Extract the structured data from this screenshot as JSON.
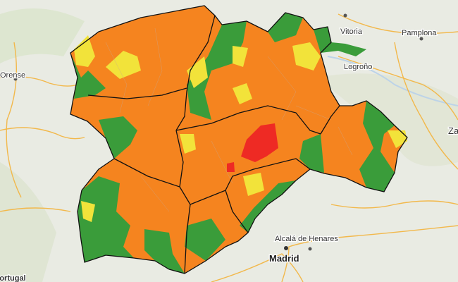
{
  "map": {
    "labels": [
      {
        "text": "Vitoria"
      },
      {
        "text": "Pamplona"
      },
      {
        "text": "Logroño"
      },
      {
        "text": "Orense"
      },
      {
        "text": "Alcalá de Henares"
      },
      {
        "text": "Madrid"
      },
      {
        "text": "Portugal"
      },
      {
        "text": "Za"
      }
    ]
  }
}
